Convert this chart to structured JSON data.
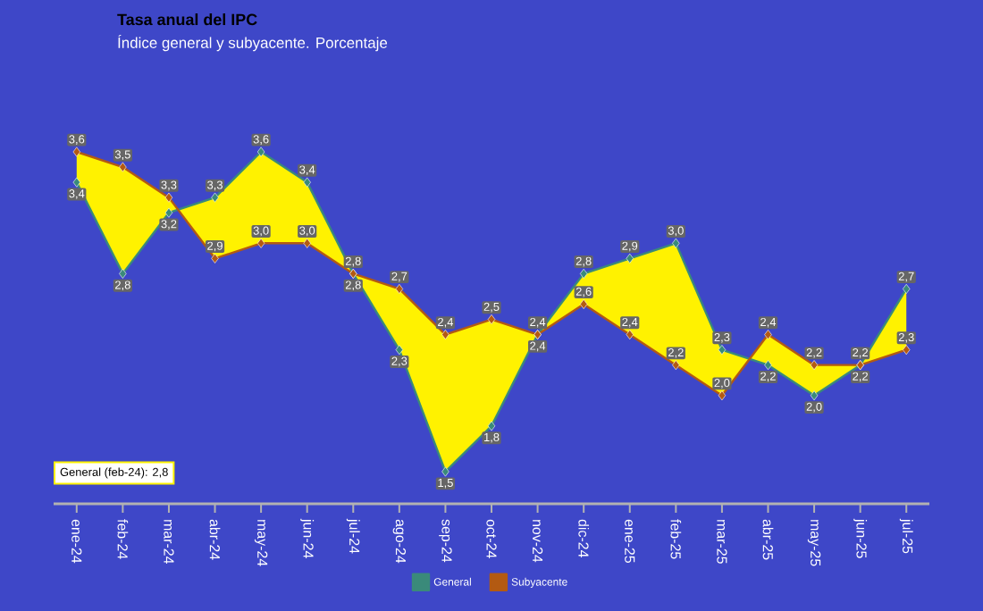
{
  "chart_data": {
    "type": "line",
    "title": "Tasa anual del IPC",
    "subtitle": "Índice general y subyacente. Porcentaje",
    "categories": [
      "ene-24",
      "feb-24",
      "mar-24",
      "abr-24",
      "may-24",
      "jun-24",
      "jul-24",
      "ago-24",
      "sep-24",
      "oct-24",
      "nov-24",
      "dic-24",
      "ene-25",
      "feb-25",
      "mar-25",
      "abr-25",
      "may-25",
      "jun-25",
      "jul-25"
    ],
    "series": [
      {
        "name": "General",
        "color": "#3a8a7a",
        "values": [
          3.4,
          2.8,
          3.2,
          3.3,
          3.6,
          3.4,
          2.8,
          2.3,
          1.5,
          1.8,
          2.4,
          2.8,
          2.9,
          3.0,
          2.3,
          2.2,
          2.0,
          2.2,
          2.7
        ],
        "value_labels": [
          "3,4",
          "2,8",
          "3,2",
          "3,3",
          "3,6",
          "3,4",
          "2,8",
          "2,3",
          "1,5",
          "1,8",
          "2,4",
          "2,8",
          "2,9",
          "3,0",
          "2,3",
          "2,2",
          "2,0",
          "2,2",
          "2,7"
        ]
      },
      {
        "name": "Subyacente",
        "color": "#b35a12",
        "values": [
          3.6,
          3.5,
          3.3,
          2.9,
          3.0,
          3.0,
          2.8,
          2.7,
          2.4,
          2.5,
          2.4,
          2.6,
          2.4,
          2.2,
          2.0,
          2.4,
          2.2,
          2.2,
          2.3
        ],
        "value_labels": [
          "3,6",
          "3,5",
          "3,3",
          "2,9",
          "3,0",
          "3,0",
          "2,8",
          "2,7",
          "2,4",
          "2,5",
          "2,4",
          "2,6",
          "2,4",
          "2,2",
          "2,0",
          "2,4",
          "2,2",
          "2,2",
          "2,3"
        ]
      }
    ],
    "annotations": [
      "General (feb-24): 2,8"
    ],
    "marker": "diamond",
    "line_style": "solid",
    "legend": "bottom",
    "tick_labels": "x"
  }
}
